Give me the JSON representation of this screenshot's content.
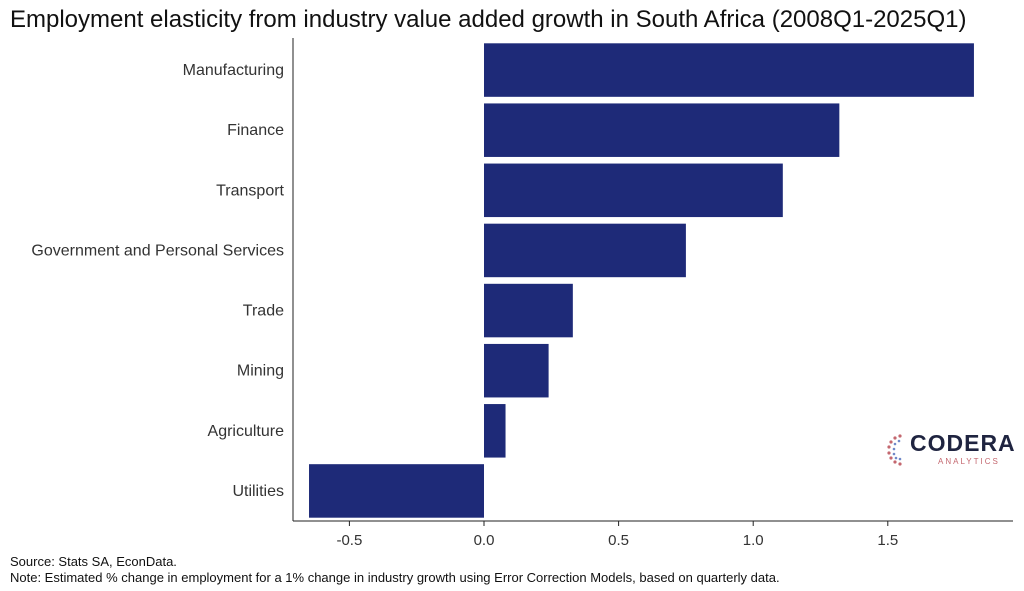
{
  "chart_data": {
    "type": "bar",
    "orientation": "horizontal",
    "title": "Employment elasticity from industry value added growth in South Africa (2008Q1-2025Q1)",
    "categories": [
      "Manufacturing",
      "Finance",
      "Transport",
      "Government and Personal Services",
      "Trade",
      "Mining",
      "Agriculture",
      "Utilities"
    ],
    "values": [
      1.82,
      1.32,
      1.11,
      0.75,
      0.33,
      0.24,
      0.08,
      -0.65
    ],
    "xlim": [
      -0.7,
      1.95
    ],
    "xticks": [
      -0.5,
      0.0,
      0.5,
      1.0,
      1.5
    ],
    "xtick_labels": [
      "-0.5",
      "0.0",
      "0.5",
      "1.0",
      "1.5"
    ],
    "bar_color": "#1e2a78",
    "grid": false
  },
  "notes": {
    "source": "Source: Stats SA, EconData.",
    "method": "Note: Estimated % change in employment for a 1% change in industry growth using Error Correction Models, based on quarterly data."
  },
  "logo": {
    "word": "CODERA",
    "sub": "ANALYTICS"
  }
}
